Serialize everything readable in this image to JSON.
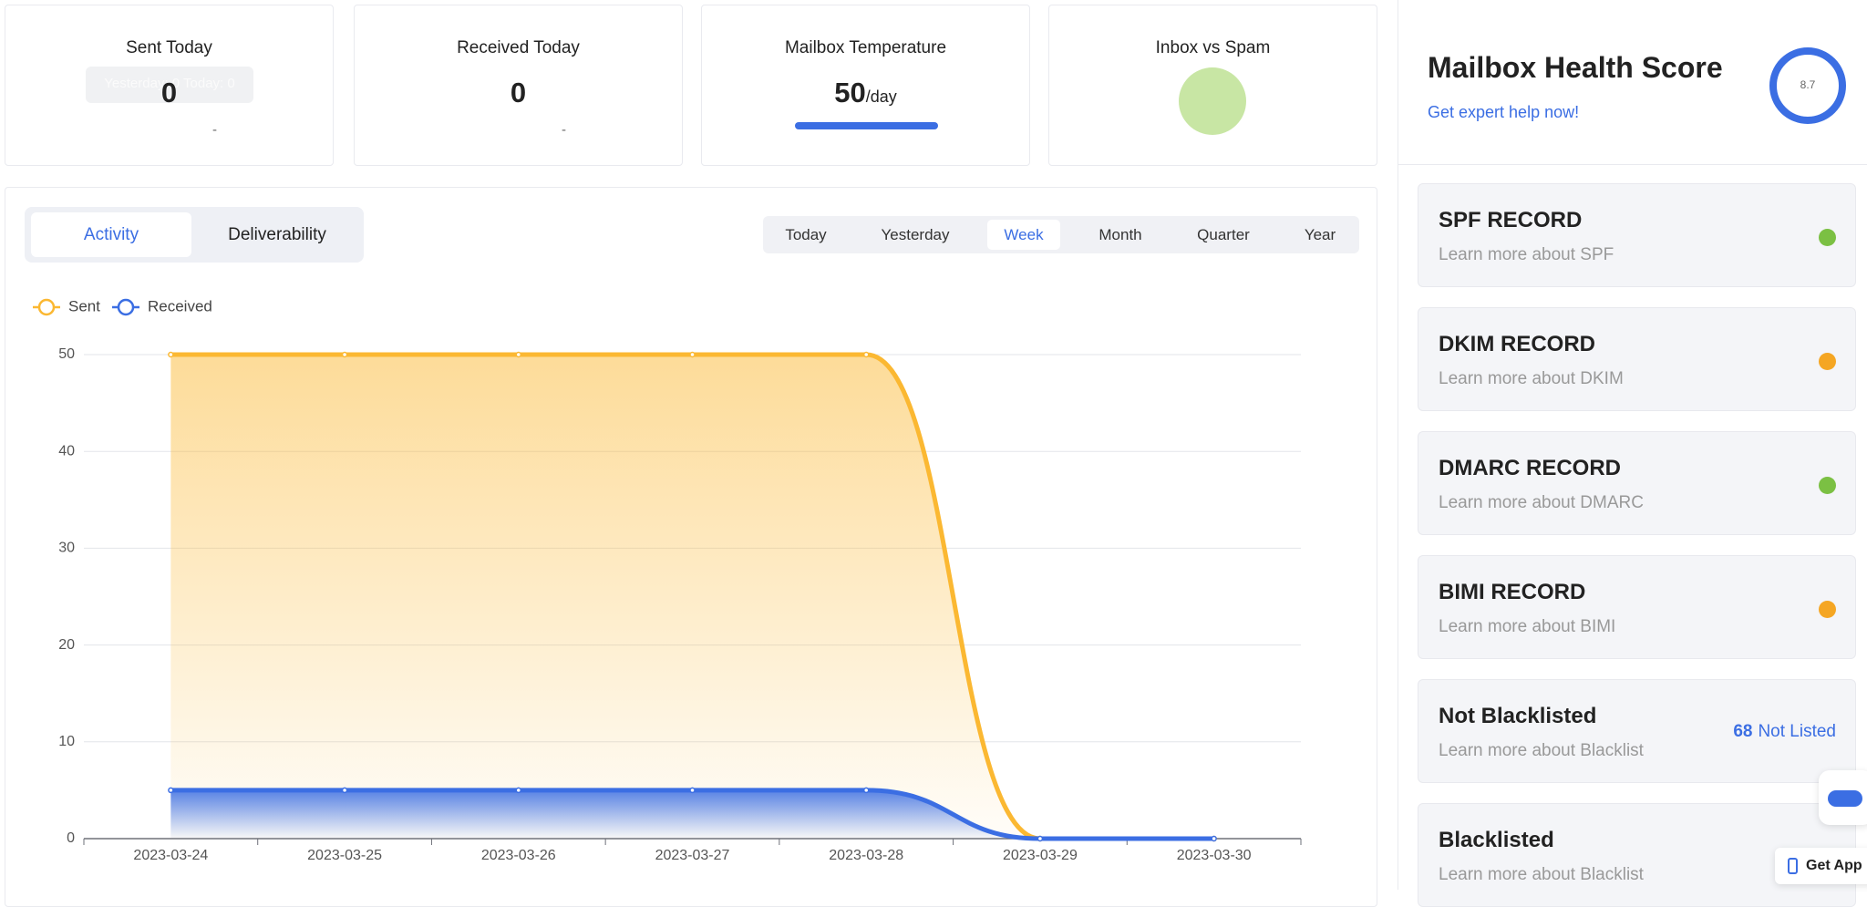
{
  "stats": [
    {
      "title": "Sent Today",
      "value": 0,
      "sub": "-"
    },
    {
      "title": "Received Today",
      "value": 0,
      "sub": "-"
    },
    {
      "title": "Mailbox Temperature",
      "value": 50,
      "unit": "/day"
    },
    {
      "title": "Inbox vs Spam"
    }
  ],
  "tooltip": "Yesterday: 0  Today: 0",
  "tabs": [
    "Activity",
    "Deliverability"
  ],
  "active_tab": 0,
  "periods": [
    "Today",
    "Yesterday",
    "Week",
    "Month",
    "Quarter",
    "Year"
  ],
  "active_period": 2,
  "chart_data": {
    "type": "line",
    "x": [
      "2023-03-24",
      "2023-03-25",
      "2023-03-26",
      "2023-03-27",
      "2023-03-28",
      "2023-03-29",
      "2023-03-30"
    ],
    "series": [
      {
        "name": "Sent",
        "color": "#fbb832",
        "values": [
          50,
          50,
          50,
          50,
          50,
          0,
          0
        ]
      },
      {
        "name": "Received",
        "color": "#3b6ee3",
        "values": [
          5,
          5,
          5,
          5,
          5,
          0,
          0
        ]
      }
    ],
    "ylim": [
      0,
      50
    ],
    "yticks": [
      0,
      10,
      20,
      30,
      40,
      50
    ],
    "grid": true,
    "area": true
  },
  "health": {
    "title": "Mailbox Health Score",
    "link": "Get expert help now!",
    "score": 8.7,
    "records": [
      {
        "title": "SPF RECORD",
        "desc": "Learn more about SPF",
        "status": "ok"
      },
      {
        "title": "DKIM RECORD",
        "desc": "Learn more about DKIM",
        "status": "warn"
      },
      {
        "title": "DMARC RECORD",
        "desc": "Learn more about DMARC",
        "status": "ok"
      },
      {
        "title": "BIMI RECORD",
        "desc": "Learn more about BIMI",
        "status": "warn"
      },
      {
        "title": "Not Blacklisted",
        "desc": "Learn more about Blacklist",
        "count": 68,
        "count_label": "Not Listed"
      },
      {
        "title": "Blacklisted",
        "desc": "Learn more about Blacklist"
      }
    ]
  },
  "get_app": "Get App"
}
